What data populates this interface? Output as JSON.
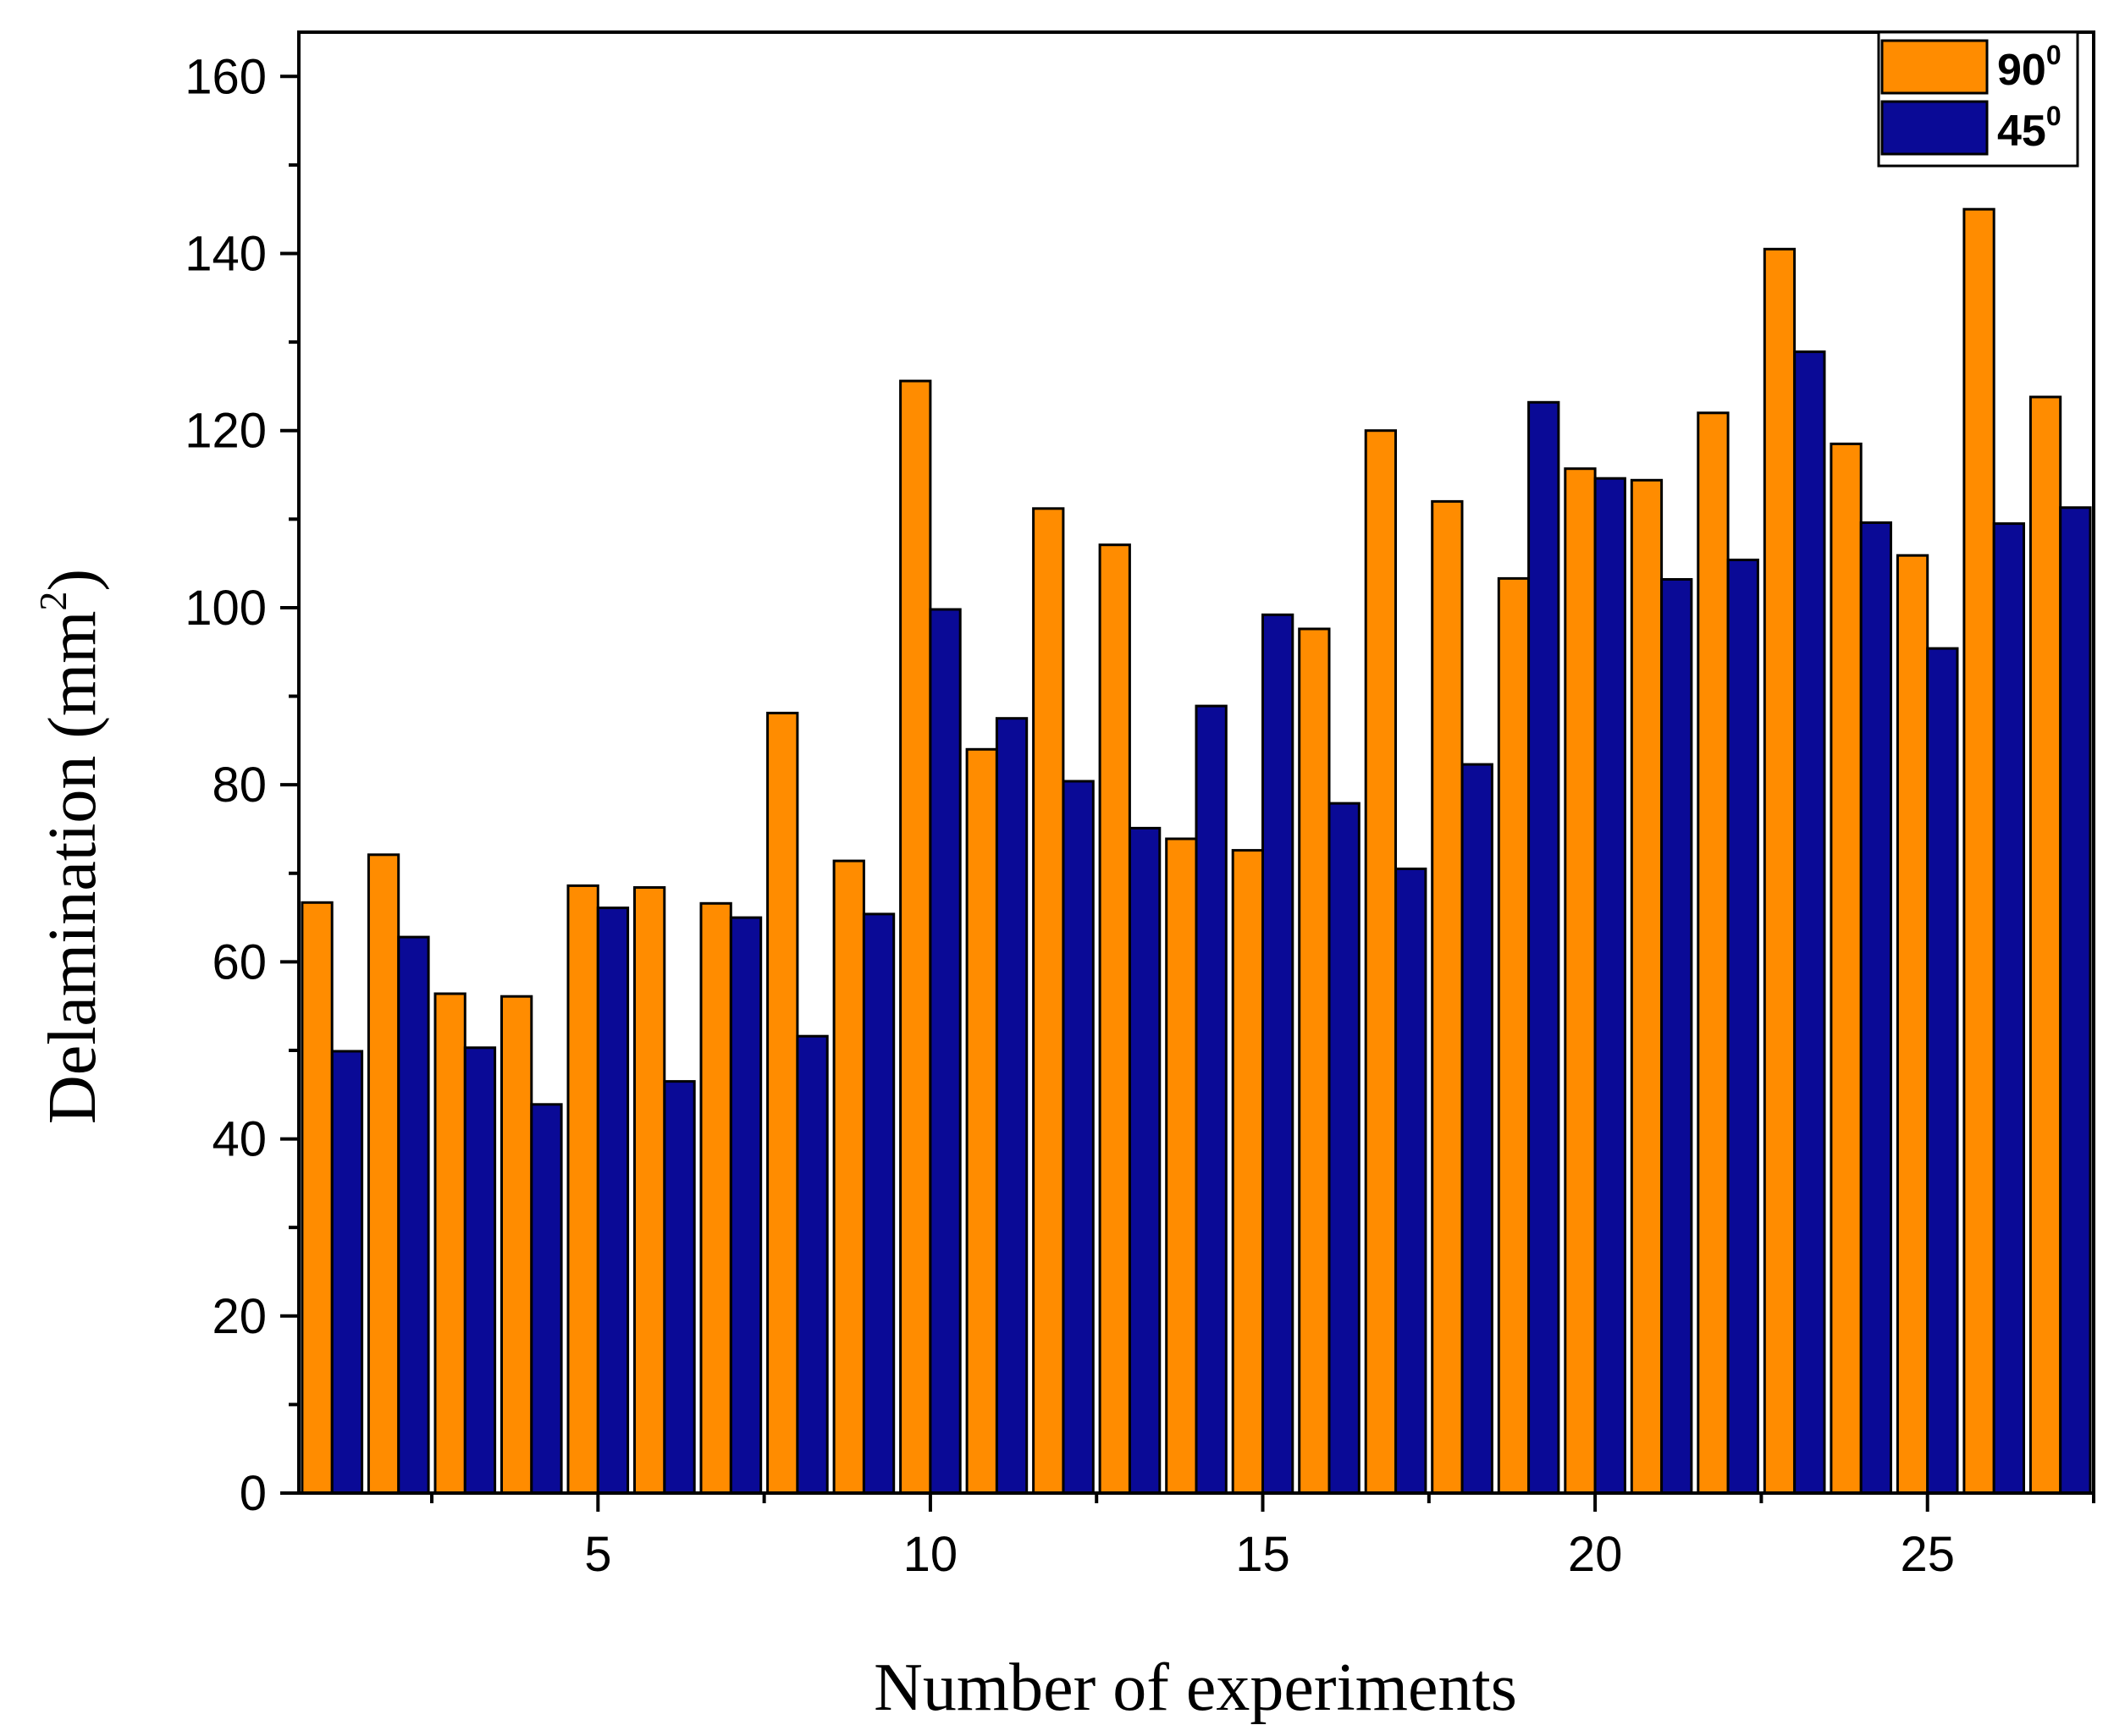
{
  "chart_data": {
    "type": "bar",
    "title": "",
    "xlabel": "Number of experiments",
    "ylabel": "Delamination (mm2)",
    "ylabel_main": "Delamination (mm",
    "ylabel_sup": "2",
    "ylabel_close": ")",
    "ylim": [
      0,
      165
    ],
    "xlim": [
      0.5,
      27.5
    ],
    "y_ticks": [
      0,
      20,
      40,
      60,
      80,
      100,
      120,
      140,
      160
    ],
    "x_ticks": [
      5,
      10,
      15,
      20,
      25
    ],
    "grid": false,
    "legend_position": "top-right",
    "categories": [
      1,
      2,
      3,
      4,
      5,
      6,
      7,
      8,
      9,
      10,
      11,
      12,
      13,
      14,
      15,
      16,
      17,
      18,
      19,
      20,
      21,
      22,
      23,
      24,
      25,
      26,
      27
    ],
    "series": [
      {
        "name": "90",
        "label_main": "90",
        "label_sup": "0",
        "color": "#FF8C00",
        "values": [
          66.7,
          72.1,
          56.4,
          56.1,
          68.6,
          68.4,
          66.6,
          88.1,
          71.4,
          125.6,
          84.0,
          111.2,
          107.1,
          73.9,
          72.6,
          97.6,
          120.0,
          112.0,
          103.3,
          115.7,
          114.4,
          122.0,
          140.5,
          118.5,
          105.9,
          145.0,
          123.8
        ]
      },
      {
        "name": "45",
        "label_main": "45",
        "label_sup": "0",
        "color": "#0A0A96",
        "values": [
          49.9,
          62.8,
          50.3,
          43.9,
          66.1,
          46.5,
          65.0,
          51.6,
          65.4,
          99.8,
          87.5,
          80.4,
          75.1,
          88.9,
          99.2,
          77.9,
          70.5,
          82.3,
          123.2,
          114.6,
          103.2,
          105.4,
          128.9,
          109.6,
          95.4,
          109.5,
          111.3
        ]
      }
    ]
  }
}
